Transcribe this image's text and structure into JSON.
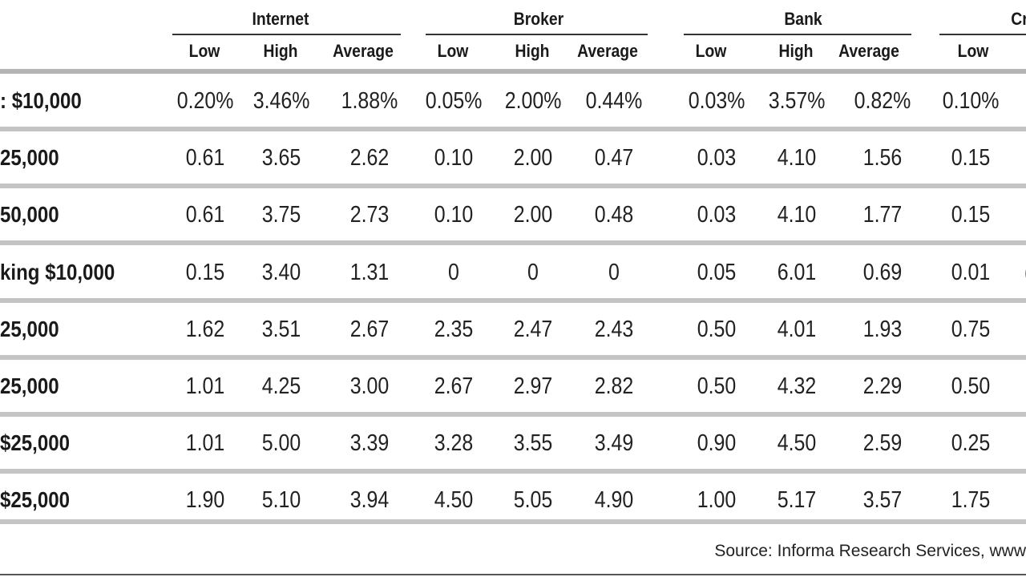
{
  "groups": [
    "Internet",
    "Broker",
    "Bank",
    "Cr"
  ],
  "subheaders": [
    "Low",
    "High",
    "Average",
    "Low",
    "High",
    "Average",
    "Low",
    "High",
    "Average",
    "Low"
  ],
  "rows": [
    {
      "label": ": $10,000",
      "cells": [
        "0.20%",
        "3.46%",
        "1.88%",
        "0.05%",
        "2.00%",
        "0.44%",
        "0.03%",
        "3.57%",
        "0.82%",
        "0.10%",
        ":"
      ]
    },
    {
      "label": "25,000",
      "cells": [
        "0.61",
        "3.65",
        "2.62",
        "0.10",
        "2.00",
        "0.47",
        "0.03",
        "4.10",
        "1.56",
        "0.15",
        ":"
      ]
    },
    {
      "label": "50,000",
      "cells": [
        "0.61",
        "3.75",
        "2.73",
        "0.10",
        "2.00",
        "0.48",
        "0.03",
        "4.10",
        "1.77",
        "0.15",
        ":"
      ]
    },
    {
      "label": "king $10,000",
      "cells": [
        "0.15",
        "3.40",
        "1.31",
        "0",
        "0",
        "0",
        "0.05",
        "6.01",
        "0.69",
        "0.01",
        "("
      ]
    },
    {
      "label": "25,000",
      "cells": [
        "1.62",
        "3.51",
        "2.67",
        "2.35",
        "2.47",
        "2.43",
        "0.50",
        "4.01",
        "1.93",
        "0.75",
        ":"
      ]
    },
    {
      "label": "25,000",
      "cells": [
        "1.01",
        "4.25",
        "3.00",
        "2.67",
        "2.97",
        "2.82",
        "0.50",
        "4.32",
        "2.29",
        "0.50",
        "·"
      ]
    },
    {
      "label": "$25,000",
      "cells": [
        "1.01",
        "5.00",
        "3.39",
        "3.28",
        "3.55",
        "3.49",
        "0.90",
        "4.50",
        "2.59",
        "0.25",
        "·"
      ]
    },
    {
      "label": "$25,000",
      "cells": [
        "1.90",
        "5.10",
        "3.94",
        "4.50",
        "5.05",
        "4.90",
        "1.00",
        "5.17",
        "3.57",
        "1.75",
        ":"
      ]
    }
  ],
  "source": "Source: Informa Research Services, www"
}
